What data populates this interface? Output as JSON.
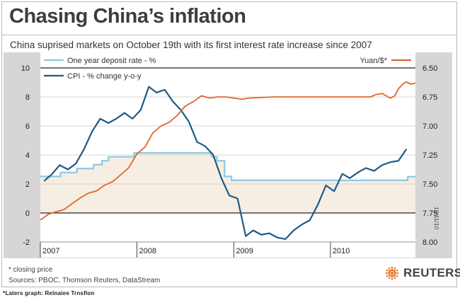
{
  "header": {
    "title": "Chasing China’s inflation",
    "subtitle": "China suprised markets on October 19th with its first interest rate increase since 2007"
  },
  "notes": {
    "closing": "* closing price",
    "sources": "Sources: PBOC, Thomson Reuters, DataStream"
  },
  "brand": {
    "name": "REUTERS",
    "mark_icon": "reuters-dot-icon",
    "mark_color": "#e87722"
  },
  "caption": "*Laters graph: Relnaiee Trnsflon",
  "date_stamp": "18/11/10",
  "colors": {
    "cpi": "#1f5a85",
    "deposit": "#8ec7e4",
    "yuan": "#e0662c",
    "fill": "#f6eee2",
    "panel": "#d6d6d6",
    "plot_bg": "#ffffff"
  },
  "chart_data": {
    "type": "line",
    "title": "Chasing China’s inflation",
    "subtitle": "China suprised markets on October 19th with its first interest rate increase since 2007",
    "x_ticks": [
      "2007",
      "2008",
      "2009",
      "2010"
    ],
    "xlim": [
      "2007-01-01",
      "2010-11-18"
    ],
    "y_left": {
      "ticks": [
        "-2",
        "0",
        "2",
        "4",
        "6",
        "8",
        "10"
      ],
      "ylim": [
        -2,
        10
      ]
    },
    "y_right": {
      "ticks": [
        "6.50",
        "6.75",
        "7.00",
        "7.25",
        "7.50",
        "7.75",
        "8.00"
      ],
      "ylim": [
        6.5,
        8.0
      ],
      "inverted": true
    },
    "legend_position": "top",
    "series": [
      {
        "name": "One year deposit rate - %",
        "axis": "left",
        "step": true,
        "x": [
          "2006-11-01",
          "2007-03-18",
          "2007-05-19",
          "2007-07-21",
          "2007-08-22",
          "2007-09-15",
          "2007-12-21",
          "2008-10-09",
          "2008-10-30",
          "2008-11-27",
          "2008-12-23",
          "2010-10-20",
          "2010-11-18"
        ],
        "values": [
          2.52,
          2.79,
          3.06,
          3.33,
          3.6,
          3.87,
          4.14,
          3.87,
          3.6,
          2.52,
          2.25,
          2.5,
          2.5
        ]
      },
      {
        "name": "CPI - % change y-o-y",
        "axis": "left",
        "step": false,
        "x": [
          "2007-01-15",
          "2007-02-15",
          "2007-03-15",
          "2007-04-15",
          "2007-05-15",
          "2007-06-15",
          "2007-07-15",
          "2007-08-15",
          "2007-09-15",
          "2007-10-15",
          "2007-11-15",
          "2007-12-15",
          "2008-01-15",
          "2008-02-15",
          "2008-03-15",
          "2008-04-15",
          "2008-05-15",
          "2008-06-15",
          "2008-07-15",
          "2008-08-15",
          "2008-09-15",
          "2008-10-15",
          "2008-11-15",
          "2008-12-15",
          "2009-01-15",
          "2009-02-15",
          "2009-03-15",
          "2009-04-15",
          "2009-05-15",
          "2009-06-15",
          "2009-07-15",
          "2009-08-15",
          "2009-09-15",
          "2009-10-15",
          "2009-11-15",
          "2009-12-15",
          "2010-01-15",
          "2010-02-15",
          "2010-03-15",
          "2010-04-15",
          "2010-05-15",
          "2010-06-15",
          "2010-07-15",
          "2010-08-15",
          "2010-09-15",
          "2010-10-15"
        ],
        "values": [
          2.2,
          2.7,
          3.3,
          3.0,
          3.4,
          4.4,
          5.6,
          6.5,
          6.2,
          6.5,
          6.9,
          6.5,
          7.1,
          8.7,
          8.3,
          8.5,
          7.7,
          7.1,
          6.3,
          4.9,
          4.6,
          4.0,
          2.4,
          1.2,
          1.0,
          -1.6,
          -1.2,
          -1.5,
          -1.4,
          -1.7,
          -1.8,
          -1.2,
          -0.8,
          -0.5,
          0.6,
          1.9,
          1.5,
          2.7,
          2.4,
          2.8,
          3.1,
          2.9,
          3.3,
          3.5,
          3.6,
          4.4
        ]
      },
      {
        "name": "Yuan/$*",
        "axis": "right",
        "step": false,
        "x": [
          "2007-01-01",
          "2007-02-01",
          "2007-03-01",
          "2007-04-01",
          "2007-05-01",
          "2007-06-01",
          "2007-07-01",
          "2007-08-01",
          "2007-09-01",
          "2007-10-01",
          "2007-11-01",
          "2007-12-01",
          "2008-01-01",
          "2008-02-01",
          "2008-03-01",
          "2008-04-01",
          "2008-05-01",
          "2008-06-01",
          "2008-07-01",
          "2008-08-01",
          "2008-09-01",
          "2008-10-01",
          "2008-11-01",
          "2008-12-01",
          "2009-01-01",
          "2009-02-01",
          "2009-03-01",
          "2009-06-01",
          "2009-09-01",
          "2009-12-01",
          "2010-03-01",
          "2010-06-01",
          "2010-06-21",
          "2010-07-15",
          "2010-08-15",
          "2010-09-01",
          "2010-09-15",
          "2010-10-01",
          "2010-10-15",
          "2010-11-01",
          "2010-11-18"
        ],
        "values": [
          7.81,
          7.76,
          7.74,
          7.72,
          7.67,
          7.62,
          7.58,
          7.56,
          7.51,
          7.48,
          7.42,
          7.36,
          7.24,
          7.18,
          7.06,
          7.0,
          6.97,
          6.91,
          6.83,
          6.79,
          6.74,
          6.76,
          6.75,
          6.75,
          6.76,
          6.77,
          6.76,
          6.75,
          6.75,
          6.75,
          6.75,
          6.75,
          6.73,
          6.72,
          6.76,
          6.74,
          6.68,
          6.64,
          6.62,
          6.64,
          6.63
        ]
      }
    ]
  }
}
